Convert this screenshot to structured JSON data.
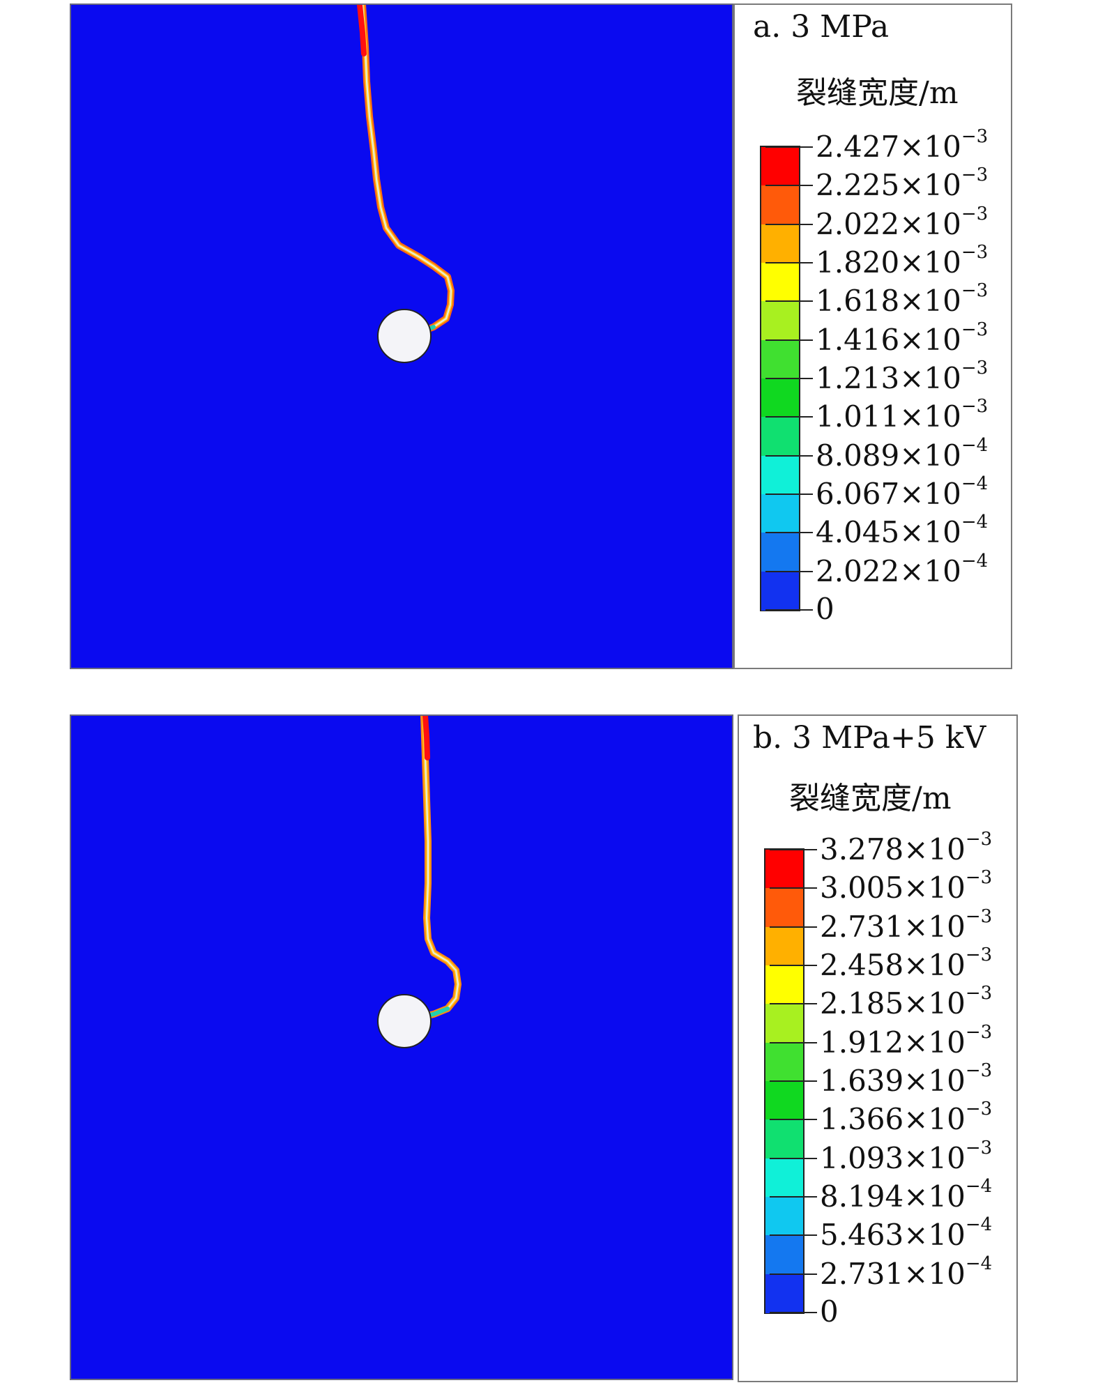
{
  "panels": [
    {
      "id": "a",
      "title": "a. 3 MPa",
      "legend_label": "裂缝宽度/m",
      "ticks": [
        {
          "mantissa": "2.427×10",
          "exp": "−3"
        },
        {
          "mantissa": "2.225×10",
          "exp": "−3"
        },
        {
          "mantissa": "2.022×10",
          "exp": "−3"
        },
        {
          "mantissa": "1.820×10",
          "exp": "−3"
        },
        {
          "mantissa": "1.618×10",
          "exp": "−3"
        },
        {
          "mantissa": "1.416×10",
          "exp": "−3"
        },
        {
          "mantissa": "1.213×10",
          "exp": "−3"
        },
        {
          "mantissa": "1.011×10",
          "exp": "−3"
        },
        {
          "mantissa": "8.089×10",
          "exp": "−4"
        },
        {
          "mantissa": "6.067×10",
          "exp": "−4"
        },
        {
          "mantissa": "4.045×10",
          "exp": "−4"
        },
        {
          "mantissa": "2.022×10",
          "exp": "−4"
        },
        {
          "mantissa": "0",
          "exp": ""
        }
      ]
    },
    {
      "id": "b",
      "title": "b. 3 MPa+5 kV",
      "legend_label": "裂缝宽度/m",
      "ticks": [
        {
          "mantissa": "3.278×10",
          "exp": "−3"
        },
        {
          "mantissa": "3.005×10",
          "exp": "−3"
        },
        {
          "mantissa": "2.731×10",
          "exp": "−3"
        },
        {
          "mantissa": "2.458×10",
          "exp": "−3"
        },
        {
          "mantissa": "2.185×10",
          "exp": "−3"
        },
        {
          "mantissa": "1.912×10",
          "exp": "−3"
        },
        {
          "mantissa": "1.639×10",
          "exp": "−3"
        },
        {
          "mantissa": "1.366×10",
          "exp": "−3"
        },
        {
          "mantissa": "1.093×10",
          "exp": "−3"
        },
        {
          "mantissa": "8.194×10",
          "exp": "−4"
        },
        {
          "mantissa": "5.463×10",
          "exp": "−4"
        },
        {
          "mantissa": "2.731×10",
          "exp": "−4"
        },
        {
          "mantissa": "0",
          "exp": ""
        }
      ]
    }
  ],
  "colors": {
    "background_field": "#0a0af0",
    "borehole": "#f4f4f8",
    "bands": [
      "#ff0000",
      "#ff5a0a",
      "#ffb000",
      "#ffff00",
      "#a8f020",
      "#40e030",
      "#10d820",
      "#10e070",
      "#10f0d8",
      "#10c8f0",
      "#1478f0",
      "#1232f0"
    ]
  }
}
